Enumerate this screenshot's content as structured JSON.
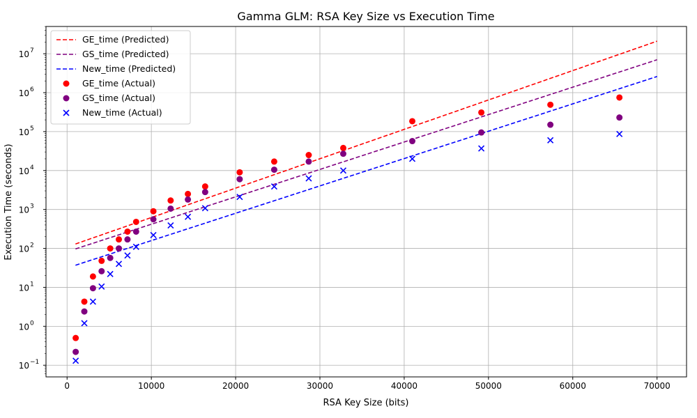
{
  "chart_data": {
    "type": "scatter",
    "title": "Gamma GLM: RSA Key Size vs Execution Time",
    "xlabel": "RSA Key Size (bits)",
    "ylabel": "Execution Time (seconds)",
    "xlim": [
      -2500,
      73500
    ],
    "ylim_log10": [
      -1.3,
      7.7
    ],
    "yscale": "log",
    "grid": true,
    "legend_position": "top-left",
    "x_ticks": [
      0,
      10000,
      20000,
      30000,
      40000,
      50000,
      60000,
      70000
    ],
    "x_tick_labels": [
      "0",
      "10000",
      "20000",
      "30000",
      "40000",
      "50000",
      "60000",
      "70000"
    ],
    "y_tick_exponents": [
      -1,
      0,
      1,
      2,
      3,
      4,
      5,
      6,
      7
    ],
    "predicted": [
      {
        "name": "GE_time (Predicted)",
        "color": "#ff0000",
        "x": [
          1000,
          70000
        ],
        "y": [
          130,
          21000000
        ]
      },
      {
        "name": "GS_time (Predicted)",
        "color": "#800080",
        "x": [
          1000,
          70000
        ],
        "y": [
          97,
          7000000
        ]
      },
      {
        "name": "New_time (Predicted)",
        "color": "#0000ff",
        "x": [
          1000,
          70000
        ],
        "y": [
          37,
          2600000
        ]
      }
    ],
    "actual": [
      {
        "name": "GE_time (Actual)",
        "color": "#ff0000",
        "marker": "circle",
        "x": [
          1024,
          2048,
          3072,
          4096,
          5120,
          6144,
          7168,
          8192,
          10240,
          12288,
          14336,
          16384,
          20480,
          24576,
          28672,
          32768,
          40960,
          49152,
          57344,
          65536
        ],
        "y": [
          0.5,
          4.3,
          19,
          48,
          100,
          170,
          270,
          480,
          900,
          1700,
          2500,
          3900,
          9000,
          17000,
          25000,
          38000,
          185000,
          310000,
          490000,
          750000
        ]
      },
      {
        "name": "GS_time (Actual)",
        "color": "#800080",
        "marker": "circle",
        "x": [
          1024,
          2048,
          3072,
          4096,
          5120,
          6144,
          7168,
          8192,
          10240,
          12288,
          14336,
          16384,
          20480,
          24576,
          28672,
          32768,
          40960,
          49152,
          57344,
          65536
        ],
        "y": [
          0.22,
          2.4,
          9.5,
          26,
          57,
          100,
          170,
          270,
          560,
          1050,
          1800,
          2800,
          6000,
          10500,
          17000,
          27000,
          57000,
          95000,
          150000,
          230000
        ]
      },
      {
        "name": "New_time (Actual)",
        "color": "#0000ff",
        "marker": "x",
        "x": [
          1024,
          2048,
          3072,
          4096,
          5120,
          6144,
          7168,
          8192,
          10240,
          12288,
          14336,
          16384,
          20480,
          24576,
          28672,
          32768,
          40960,
          49152,
          57344,
          65536
        ],
        "y": [
          0.13,
          1.2,
          4.3,
          10.5,
          22,
          40,
          66,
          110,
          220,
          390,
          650,
          1080,
          2100,
          3900,
          6300,
          10000,
          20000,
          37000,
          60000,
          87000
        ]
      }
    ]
  }
}
